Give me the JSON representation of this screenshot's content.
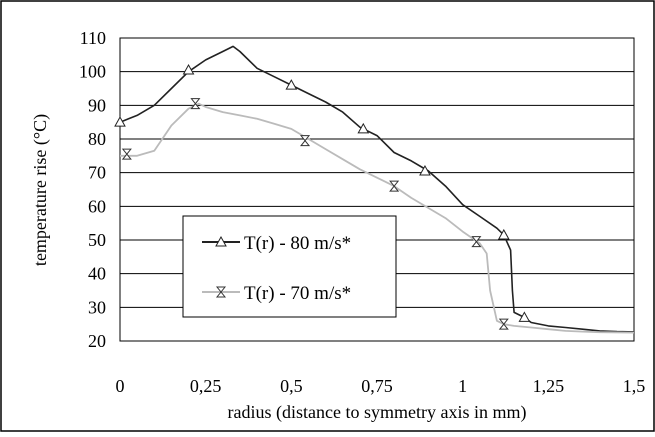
{
  "chart_data": {
    "type": "line",
    "title": "",
    "xlabel": "radius (distance to symmetry axis in mm)",
    "ylabel": "temperature rise (°C)",
    "xlim": [
      0,
      1.5
    ],
    "ylim": [
      20,
      110
    ],
    "x_ticks": [
      0,
      0.25,
      0.5,
      0.75,
      1,
      1.25,
      1.5
    ],
    "x_tick_labels": [
      "0",
      "0,25",
      "0,5",
      "0,75",
      "1",
      "1,25",
      "1,5"
    ],
    "y_ticks": [
      20,
      30,
      40,
      50,
      60,
      70,
      80,
      90,
      100,
      110
    ],
    "y_tick_labels": [
      "20",
      "30",
      "40",
      "50",
      "60",
      "70",
      "80",
      "90",
      "100",
      "110"
    ],
    "grid": "horizontal",
    "legend_position": "bottom-left",
    "series": [
      {
        "name": "T(r) - 80 m/s*",
        "color": "#222222",
        "marker": "triangle",
        "x": [
          0.0,
          0.05,
          0.1,
          0.15,
          0.2,
          0.25,
          0.3,
          0.33,
          0.35,
          0.4,
          0.45,
          0.5,
          0.55,
          0.6,
          0.65,
          0.7,
          0.75,
          0.8,
          0.85,
          0.9,
          0.95,
          1.0,
          1.05,
          1.1,
          1.12,
          1.14,
          1.145,
          1.15,
          1.18,
          1.2,
          1.25,
          1.3,
          1.35,
          1.4,
          1.45,
          1.5
        ],
        "y": [
          85,
          87,
          90,
          95,
          100,
          103.5,
          106,
          107.5,
          106,
          101,
          98.5,
          96,
          93.5,
          91,
          88,
          83.5,
          81,
          76,
          73.5,
          70.5,
          66,
          60.5,
          57,
          53.5,
          51.5,
          47,
          35,
          28.5,
          27,
          25.5,
          24.5,
          24,
          23.5,
          23,
          22.8,
          22.7
        ],
        "marker_x": [
          0.0,
          0.2,
          0.5,
          0.71,
          0.89,
          1.12,
          1.18
        ],
        "marker_y": [
          85,
          100.5,
          96,
          83,
          70.5,
          51.5,
          27
        ]
      },
      {
        "name": "T(r) - 70 m/s*",
        "color": "#bbbbbb",
        "marker": "hourglass",
        "x": [
          0.0,
          0.05,
          0.1,
          0.15,
          0.2,
          0.23,
          0.25,
          0.3,
          0.35,
          0.4,
          0.45,
          0.5,
          0.55,
          0.6,
          0.65,
          0.7,
          0.75,
          0.8,
          0.85,
          0.9,
          0.95,
          1.0,
          1.05,
          1.07,
          1.08,
          1.1,
          1.12,
          1.15,
          1.2,
          1.25,
          1.3,
          1.35,
          1.4,
          1.5
        ],
        "y": [
          75,
          75,
          76.5,
          84,
          89,
          90.5,
          89.5,
          88,
          87,
          86,
          84.5,
          83,
          80,
          77,
          74,
          71,
          68.5,
          66,
          62.5,
          59.5,
          56.5,
          52.5,
          49,
          46,
          35,
          26,
          25,
          24.5,
          24,
          23.5,
          23,
          22.8,
          22.6,
          22.5
        ],
        "marker_x": [
          0.02,
          0.22,
          0.54,
          0.8,
          1.04,
          1.12
        ],
        "marker_y": [
          75.5,
          90.5,
          79.5,
          66,
          49.5,
          25
        ]
      }
    ]
  }
}
